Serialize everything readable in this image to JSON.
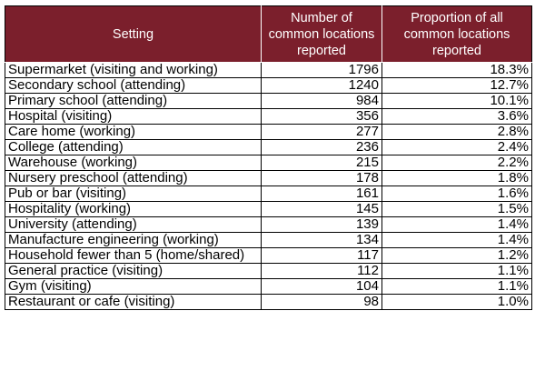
{
  "table": {
    "headers": {
      "setting": "Setting",
      "count": "Number of common locations reported",
      "proportion": "Proportion of all common locations reported"
    },
    "header_color": "#7b1f2c",
    "rows": [
      {
        "setting": "Supermarket (visiting and working)",
        "count": "1796",
        "proportion": "18.3%"
      },
      {
        "setting": "Secondary school (attending)",
        "count": "1240",
        "proportion": "12.7%"
      },
      {
        "setting": "Primary school (attending)",
        "count": "984",
        "proportion": "10.1%"
      },
      {
        "setting": "Hospital (visiting)",
        "count": "356",
        "proportion": "3.6%"
      },
      {
        "setting": "Care home (working)",
        "count": "277",
        "proportion": "2.8%"
      },
      {
        "setting": "College (attending)",
        "count": "236",
        "proportion": "2.4%"
      },
      {
        "setting": "Warehouse (working)",
        "count": "215",
        "proportion": "2.2%"
      },
      {
        "setting": "Nursery preschool (attending)",
        "count": "178",
        "proportion": "1.8%"
      },
      {
        "setting": "Pub or bar (visiting)",
        "count": "161",
        "proportion": "1.6%"
      },
      {
        "setting": "Hospitality (working)",
        "count": "145",
        "proportion": "1.5%"
      },
      {
        "setting": "University (attending)",
        "count": "139",
        "proportion": "1.4%"
      },
      {
        "setting": "Manufacture engineering (working)",
        "count": "134",
        "proportion": "1.4%"
      },
      {
        "setting": "Household fewer than 5 (home/shared)",
        "count": "117",
        "proportion": "1.2%"
      },
      {
        "setting": "General practice (visiting)",
        "count": "112",
        "proportion": "1.1%"
      },
      {
        "setting": "Gym (visiting)",
        "count": "104",
        "proportion": "1.1%"
      },
      {
        "setting": "Restaurant or cafe (visiting)",
        "count": "98",
        "proportion": "1.0%"
      }
    ]
  }
}
